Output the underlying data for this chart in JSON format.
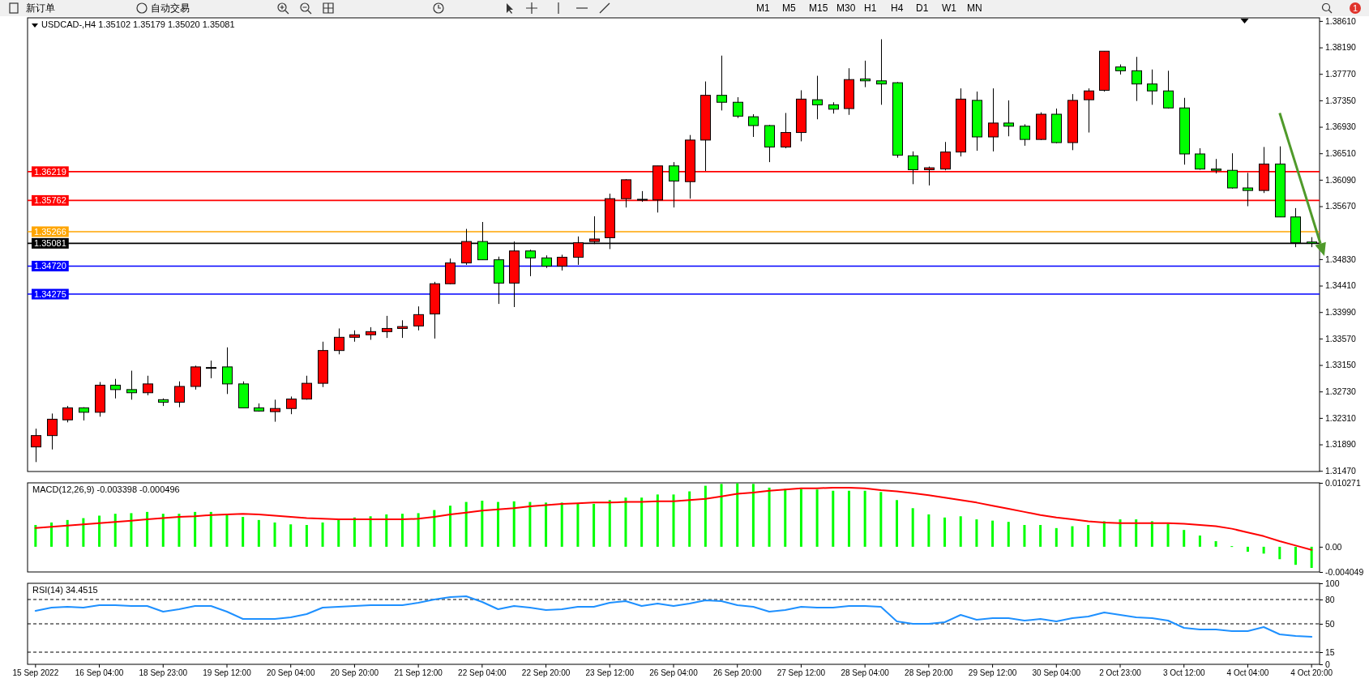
{
  "chart_data": [
    {
      "type": "candlestick",
      "title": "USDCAD-,H4  1.35102 1.35179 1.35020 1.35081",
      "categories": [
        null,
        null,
        null,
        null,
        null,
        null,
        null,
        null,
        null,
        null,
        null,
        null,
        null,
        null,
        null,
        null,
        null,
        null,
        null,
        null,
        null,
        null,
        null,
        null,
        null,
        null,
        null,
        null,
        null,
        null,
        null,
        null,
        null,
        null,
        null,
        null,
        null,
        null,
        null,
        null,
        null,
        null,
        null,
        null,
        null,
        null,
        null,
        null,
        null,
        null,
        null,
        null,
        null,
        null,
        null,
        null,
        null,
        null,
        null,
        null,
        null,
        null,
        null,
        null,
        null,
        null,
        null,
        null,
        null,
        null,
        null,
        null,
        null,
        null,
        null,
        null,
        null,
        null,
        null,
        null,
        null
      ],
      "ohlc": [
        [
          1.3185,
          1.3214,
          1.3161,
          1.3203
        ],
        [
          1.3203,
          1.3238,
          1.3181,
          1.3229
        ],
        [
          1.3228,
          1.325,
          1.3224,
          1.3247
        ],
        [
          1.3247,
          1.3248,
          1.3227,
          1.324
        ],
        [
          1.324,
          1.3288,
          1.3233,
          1.3283
        ],
        [
          1.3283,
          1.3293,
          1.3262,
          1.3276
        ],
        [
          1.3276,
          1.3306,
          1.326,
          1.3271
        ],
        [
          1.3271,
          1.3298,
          1.3267,
          1.3285
        ],
        [
          1.326,
          1.3262,
          1.325,
          1.3256
        ],
        [
          1.3256,
          1.3289,
          1.3248,
          1.3281
        ],
        [
          1.3281,
          1.3314,
          1.3276,
          1.3312
        ],
        [
          1.3311,
          1.3322,
          1.3294,
          1.3311
        ],
        [
          1.3312,
          1.3343,
          1.3269,
          1.3285
        ],
        [
          1.3285,
          1.3289,
          1.3247,
          1.3247
        ],
        [
          1.3247,
          1.3254,
          1.3241,
          1.3242
        ],
        [
          1.3241,
          1.326,
          1.3225,
          1.3246
        ],
        [
          1.3246,
          1.3265,
          1.3237,
          1.3261
        ],
        [
          1.3261,
          1.3298,
          1.326,
          1.3286
        ],
        [
          1.3286,
          1.3352,
          1.328,
          1.3338
        ],
        [
          1.3338,
          1.3373,
          1.3332,
          1.3359
        ],
        [
          1.3359,
          1.337,
          1.3352,
          1.3363
        ],
        [
          1.3363,
          1.3375,
          1.3355,
          1.3368
        ],
        [
          1.3368,
          1.3393,
          1.3358,
          1.3373
        ],
        [
          1.3373,
          1.3386,
          1.3358,
          1.3376
        ],
        [
          1.3377,
          1.3408,
          1.337,
          1.3395
        ],
        [
          1.3396,
          1.3447,
          1.3357,
          1.3444
        ],
        [
          1.3444,
          1.3484,
          1.3443,
          1.3477
        ],
        [
          1.3477,
          1.3531,
          1.3474,
          1.3511
        ],
        [
          1.3511,
          1.3542,
          1.3482,
          1.3482
        ],
        [
          1.3482,
          1.3487,
          1.3412,
          1.3445
        ],
        [
          1.3445,
          1.3511,
          1.3407,
          1.3496
        ],
        [
          1.3496,
          1.3498,
          1.3456,
          1.3485
        ],
        [
          1.3485,
          1.3489,
          1.3469,
          1.3472
        ],
        [
          1.3472,
          1.349,
          1.3465,
          1.3486
        ],
        [
          1.3486,
          1.3519,
          1.3474,
          1.3509
        ],
        [
          1.3511,
          1.3551,
          1.3507,
          1.3515
        ],
        [
          1.3517,
          1.3587,
          1.3499,
          1.3579
        ],
        [
          1.3579,
          1.361,
          1.3565,
          1.3609
        ],
        [
          1.3577,
          1.3591,
          1.3574,
          1.3578
        ],
        [
          1.3577,
          1.3631,
          1.3557,
          1.3631
        ],
        [
          1.3631,
          1.3637,
          1.3565,
          1.3607
        ],
        [
          1.3606,
          1.368,
          1.3579,
          1.3672
        ],
        [
          1.3672,
          1.3765,
          1.3623,
          1.3743
        ],
        [
          1.3743,
          1.3806,
          1.3719,
          1.3732
        ],
        [
          1.3732,
          1.374,
          1.3707,
          1.371
        ],
        [
          1.3709,
          1.3713,
          1.3677,
          1.3695
        ],
        [
          1.3695,
          1.3696,
          1.3637,
          1.3661
        ],
        [
          1.3661,
          1.3715,
          1.3659,
          1.3684
        ],
        [
          1.3684,
          1.3751,
          1.367,
          1.3737
        ],
        [
          1.3736,
          1.3774,
          1.3705,
          1.3728
        ],
        [
          1.3728,
          1.3732,
          1.3714,
          1.3721
        ],
        [
          1.3722,
          1.3786,
          1.3712,
          1.3768
        ],
        [
          1.3769,
          1.3798,
          1.3756,
          1.3766
        ],
        [
          1.3766,
          1.3832,
          1.3728,
          1.3761
        ],
        [
          1.3763,
          1.3764,
          1.3644,
          1.3648
        ],
        [
          1.3647,
          1.3654,
          1.3602,
          1.3625
        ],
        [
          1.3625,
          1.363,
          1.36,
          1.3628
        ],
        [
          1.3626,
          1.3669,
          1.3624,
          1.3653
        ],
        [
          1.3653,
          1.3754,
          1.3646,
          1.3737
        ],
        [
          1.3735,
          1.3749,
          1.3655,
          1.3677
        ],
        [
          1.3677,
          1.3754,
          1.3654,
          1.3699
        ],
        [
          1.3699,
          1.3735,
          1.3678,
          1.3694
        ],
        [
          1.3694,
          1.3697,
          1.3663,
          1.3673
        ],
        [
          1.3673,
          1.3716,
          1.3672,
          1.3713
        ],
        [
          1.3713,
          1.3722,
          1.3667,
          1.3668
        ],
        [
          1.3668,
          1.3745,
          1.3656,
          1.3735
        ],
        [
          1.3736,
          1.3754,
          1.3684,
          1.375
        ],
        [
          1.3751,
          1.3813,
          1.3749,
          1.3813
        ],
        [
          1.3788,
          1.3792,
          1.3776,
          1.3782
        ],
        [
          1.3782,
          1.3804,
          1.3734,
          1.3761
        ],
        [
          1.3761,
          1.3784,
          1.3728,
          1.375
        ],
        [
          1.375,
          1.3782,
          1.3722,
          1.3723
        ],
        [
          1.3723,
          1.3739,
          1.3633,
          1.365
        ],
        [
          1.365,
          1.3659,
          1.3625,
          1.3626
        ],
        [
          1.3626,
          1.3642,
          1.3619,
          1.3624
        ],
        [
          1.3624,
          1.3651,
          1.3595,
          1.3596
        ],
        [
          1.3596,
          1.362,
          1.3567,
          1.3592
        ],
        [
          1.3592,
          1.3661,
          1.3588,
          1.3634
        ],
        [
          1.3634,
          1.3662,
          1.355,
          1.355
        ],
        [
          1.355,
          1.3564,
          1.3502,
          1.3509
        ],
        [
          1.35102,
          1.35179,
          1.3502,
          1.35081
        ]
      ],
      "colors": [
        "#ff0000",
        "#ff0000",
        "#ff0000",
        "#00ff00",
        "#ff0000",
        "#00ff00",
        "#00ff00",
        "#ff0000",
        "#00ff00",
        "#ff0000",
        "#ff0000",
        "#000000",
        "#00ff00",
        "#00ff00",
        "#00ff00",
        "#ff0000",
        "#ff0000",
        "#ff0000",
        "#ff0000",
        "#ff0000",
        "#ff0000",
        "#ff0000",
        "#ff0000",
        "#ff0000",
        "#ff0000",
        "#ff0000",
        "#ff0000",
        "#ff0000",
        "#00ff00",
        "#00ff00",
        "#ff0000",
        "#00ff00",
        "#00ff00",
        "#ff0000",
        "#ff0000",
        "#ff0000",
        "#ff0000",
        "#ff0000",
        "#ff0000",
        "#ff0000",
        "#00ff00",
        "#ff0000",
        "#ff0000",
        "#00ff00",
        "#00ff00",
        "#00ff00",
        "#00ff00",
        "#ff0000",
        "#ff0000",
        "#00ff00",
        "#00ff00",
        "#ff0000",
        "#00ff00",
        "#00ff00",
        "#00ff00",
        "#00ff00",
        "#ff0000",
        "#ff0000",
        "#ff0000",
        "#00ff00",
        "#ff0000",
        "#00ff00",
        "#00ff00",
        "#ff0000",
        "#00ff00",
        "#ff0000",
        "#ff0000",
        "#ff0000",
        "#00ff00",
        "#00ff00",
        "#00ff00",
        "#00ff00",
        "#00ff00",
        "#00ff00",
        "#00ff00",
        "#00ff00",
        "#00ff00",
        "#ff0000",
        "#00ff00",
        "#00ff00",
        "#00ff00"
      ],
      "ylim": [
        1.3146,
        1.3866
      ],
      "yticks": [
        {
          "value": 1.3861,
          "label": "1.38610"
        },
        {
          "value": 1.3819,
          "label": "1.38190"
        },
        {
          "value": 1.3777,
          "label": "1.37770"
        },
        {
          "value": 1.3735,
          "label": "1.37350"
        },
        {
          "value": 1.3693,
          "label": "1.36930"
        },
        {
          "value": 1.3651,
          "label": "1.36510"
        },
        {
          "value": 1.3609,
          "label": "1.36090"
        },
        {
          "value": 1.3567,
          "label": "1.35670"
        },
        {
          "value": 1.3483,
          "label": "1.34830"
        },
        {
          "value": 1.3441,
          "label": "1.34410"
        },
        {
          "value": 1.3399,
          "label": "1.33990"
        },
        {
          "value": 1.3357,
          "label": "1.33570"
        },
        {
          "value": 1.3315,
          "label": "1.33150"
        },
        {
          "value": 1.3273,
          "label": "1.32730"
        },
        {
          "value": 1.3231,
          "label": "1.32310"
        },
        {
          "value": 1.3189,
          "label": "1.31890"
        },
        {
          "value": 1.3147,
          "label": "1.31470"
        }
      ],
      "ref_lines": [
        {
          "axis": "y",
          "value": 1.36219,
          "label": "1.36219",
          "color": "#ff0000"
        },
        {
          "axis": "y",
          "value": 1.35762,
          "label": "1.35762",
          "color": "#ff0000"
        },
        {
          "axis": "y",
          "value": 1.35266,
          "label": "1.35266",
          "color": "#ffa500"
        },
        {
          "axis": "y",
          "value": 1.35081,
          "label": "1.35081",
          "color": "#000000"
        },
        {
          "axis": "y",
          "value": 1.3472,
          "label": "1.34720",
          "color": "#0000ff"
        },
        {
          "axis": "y",
          "value": 1.34275,
          "label": "1.34275",
          "color": "#0000ff"
        }
      ],
      "annotations": [
        "新订单",
        "自动交易",
        "M1",
        "M5",
        "M15",
        "M30",
        "H1",
        "H4",
        "D1",
        "W1",
        "MN",
        "1"
      ],
      "tick_labels": "y"
    },
    {
      "type": "bar",
      "title": "MACD(12,26,9) -0.003398 -0.000496",
      "categories": [
        null,
        null,
        null,
        null,
        null,
        null,
        null,
        null,
        null,
        null,
        null,
        null,
        null,
        null,
        null,
        null,
        null,
        null,
        null,
        null,
        null,
        null,
        null,
        null,
        null,
        null,
        null,
        null,
        null,
        null,
        null,
        null,
        null,
        null,
        null,
        null,
        null,
        null,
        null,
        null,
        null,
        null,
        null,
        null,
        null,
        null,
        null,
        null,
        null,
        null,
        null,
        null,
        null,
        null,
        null,
        null,
        null,
        null,
        null,
        null,
        null,
        null,
        null,
        null,
        null,
        null,
        null,
        null,
        null,
        null,
        null,
        null,
        null,
        null,
        null,
        null,
        null,
        null,
        null,
        null,
        null
      ],
      "series": [
        {
          "color": "#00ff00",
          "values": [
            0.0035,
            0.0039,
            0.0043,
            0.0046,
            0.005,
            0.0053,
            0.0054,
            0.0056,
            0.0053,
            0.0053,
            0.0056,
            0.0056,
            0.0053,
            0.0048,
            0.0043,
            0.0039,
            0.0036,
            0.0035,
            0.0039,
            0.0044,
            0.0047,
            0.0049,
            0.0052,
            0.0053,
            0.0054,
            0.0059,
            0.0066,
            0.0072,
            0.0074,
            0.0072,
            0.0073,
            0.0072,
            0.0071,
            0.0071,
            0.0069,
            0.0069,
            0.0075,
            0.0079,
            0.0079,
            0.0084,
            0.0084,
            0.0089,
            0.0098,
            0.0101,
            0.0102,
            0.0101,
            0.0095,
            0.0093,
            0.0093,
            0.0092,
            0.009,
            0.009,
            0.009,
            0.0088,
            0.0075,
            0.0062,
            0.0052,
            0.0047,
            0.0049,
            0.0044,
            0.0042,
            0.004,
            0.0035,
            0.0035,
            0.003,
            0.0033,
            0.0035,
            0.0041,
            0.0044,
            0.0044,
            0.0041,
            0.0037,
            0.0027,
            0.0018,
            0.0009,
            0.0001,
            -0.0008,
            -0.0011,
            -0.002,
            -0.0029,
            -0.0034
          ]
        },
        {
          "type": "line",
          "color": "#ff0000",
          "values": [
            0.003,
            0.0032,
            0.0034,
            0.0036,
            0.0038,
            0.004,
            0.0042,
            0.0044,
            0.0046,
            0.0048,
            0.0049,
            0.0051,
            0.0052,
            0.0053,
            0.0052,
            0.005,
            0.0048,
            0.0046,
            0.0045,
            0.0044,
            0.0044,
            0.0044,
            0.0044,
            0.0044,
            0.0045,
            0.0048,
            0.0052,
            0.0055,
            0.0058,
            0.006,
            0.0062,
            0.0065,
            0.0067,
            0.0069,
            0.007,
            0.0071,
            0.0071,
            0.0072,
            0.0072,
            0.0073,
            0.0073,
            0.0075,
            0.0077,
            0.0081,
            0.0085,
            0.0087,
            0.009,
            0.0092,
            0.0094,
            0.0094,
            0.0095,
            0.0095,
            0.0094,
            0.0091,
            0.0089,
            0.0086,
            0.0083,
            0.0079,
            0.0075,
            0.0071,
            0.0066,
            0.0061,
            0.0056,
            0.0051,
            0.0047,
            0.0044,
            0.0041,
            0.0039,
            0.0038,
            0.0038,
            0.0038,
            0.0038,
            0.0037,
            0.0035,
            0.0033,
            0.0029,
            0.0023,
            0.0017,
            0.0009,
            0.0002,
            -0.0005
          ]
        }
      ],
      "ylim": [
        -0.004049,
        0.010271
      ],
      "yticks": [
        {
          "value": -0.004049,
          "label": "-0.004049"
        },
        {
          "value": 0,
          "label": "0.00"
        },
        {
          "value": 0.010271,
          "label": "0.010271"
        }
      ],
      "tick_labels": "y"
    },
    {
      "type": "line",
      "title": "RSI(14) 34.4515",
      "categories": [
        "15 Sep 2022",
        null,
        null,
        null,
        "16 Sep 04:00",
        null,
        null,
        null,
        "18 Sep 23:00",
        null,
        null,
        null,
        "19 Sep 12:00",
        null,
        null,
        null,
        "20 Sep 04:00",
        null,
        null,
        null,
        "20 Sep 20:00",
        null,
        null,
        null,
        "21 Sep 12:00",
        null,
        null,
        null,
        "22 Sep 04:00",
        null,
        null,
        null,
        "22 Sep 20:00",
        null,
        null,
        null,
        "23 Sep 12:00",
        null,
        null,
        null,
        "26 Sep 04:00",
        null,
        null,
        null,
        "26 Sep 20:00",
        null,
        null,
        null,
        "27 Sep 12:00",
        null,
        null,
        null,
        "28 Sep 04:00",
        null,
        null,
        null,
        "28 Sep 20:00",
        null,
        null,
        null,
        "29 Sep 12:00",
        null,
        null,
        null,
        "30 Sep 04:00",
        null,
        null,
        null,
        "2 Oct 23:00",
        null,
        null,
        null,
        "3 Oct 12:00",
        null,
        null,
        null,
        "4 Oct 04:00",
        null,
        null,
        null,
        "4 Oct 20:00"
      ],
      "series": [
        {
          "color": "#1e90ff",
          "values": [
            66,
            70,
            71,
            70,
            73,
            73,
            72,
            72,
            65,
            68,
            72,
            72,
            65,
            56,
            56,
            56,
            58,
            62,
            70,
            71,
            72,
            73,
            73,
            73,
            76,
            80,
            83,
            84,
            77,
            68,
            72,
            70,
            67,
            68,
            71,
            71,
            76,
            78,
            72,
            75,
            72,
            75,
            79,
            78,
            73,
            71,
            65,
            67,
            71,
            70,
            70,
            72,
            72,
            71,
            53,
            50,
            50,
            52,
            61,
            55,
            57,
            57,
            54,
            56,
            53,
            57,
            59,
            64,
            61,
            58,
            57,
            54,
            45,
            43,
            43,
            41,
            41,
            46,
            37,
            35,
            34
          ]
        }
      ],
      "ylim": [
        0,
        100
      ],
      "yticks": [
        0,
        15,
        50,
        80,
        100
      ],
      "ref_lines": [
        {
          "axis": "y",
          "value": 80,
          "color": "#000000",
          "line_style": "dashed"
        },
        {
          "axis": "y",
          "value": 50,
          "color": "#000000",
          "line_style": "dashed"
        },
        {
          "axis": "y",
          "value": 15,
          "color": "#000000",
          "line_style": "dashed"
        }
      ]
    }
  ]
}
